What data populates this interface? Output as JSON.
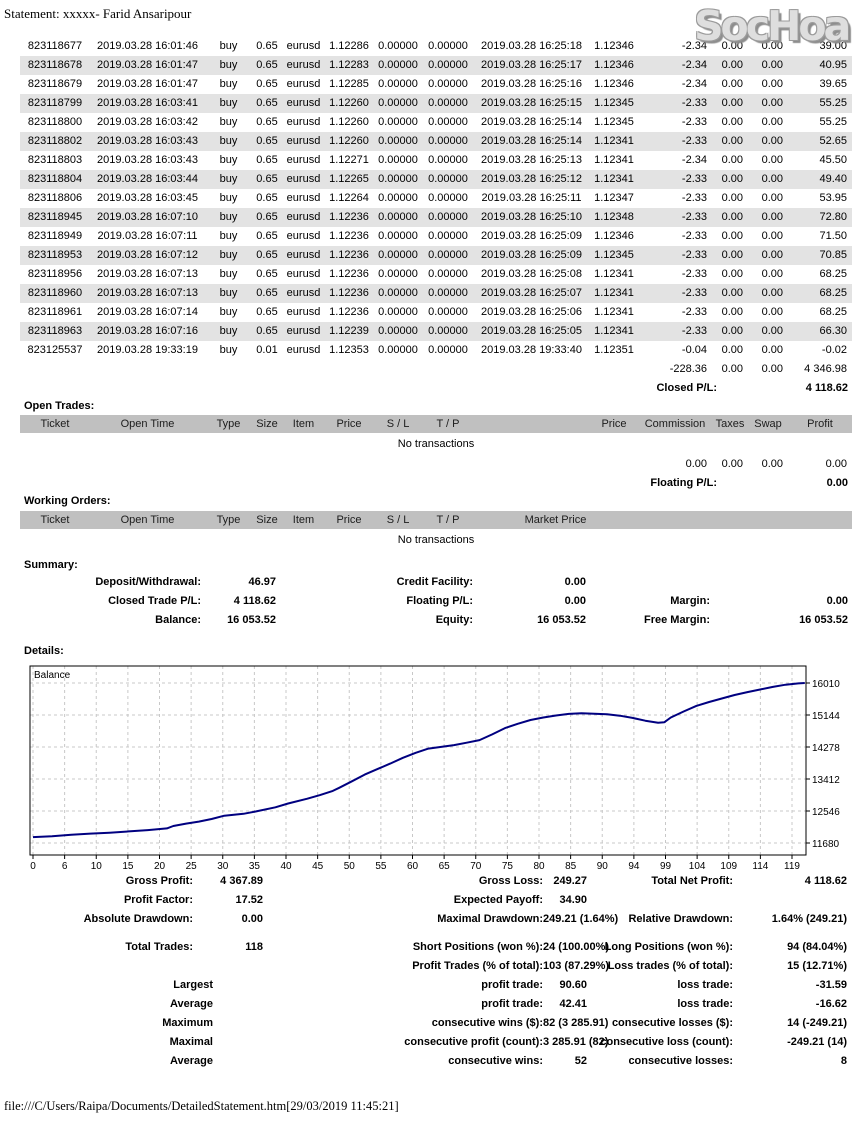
{
  "page": {
    "title": "Statement: xxxxx- Farid Ansaripour",
    "watermark": "SocHoa",
    "footer": "file:///C/Users/Raipa/Documents/DetailedStatement.htm[29/03/2019 11:45:21]"
  },
  "closed_trades": {
    "rows": [
      [
        "823118677",
        "2019.03.28 16:01:46",
        "buy",
        "0.65",
        "eurusd",
        "1.12286",
        "0.00000",
        "0.00000",
        "2019.03.28 16:25:18",
        "1.12346",
        "-2.34",
        "0.00",
        "0.00",
        "39.00"
      ],
      [
        "823118678",
        "2019.03.28 16:01:47",
        "buy",
        "0.65",
        "eurusd",
        "1.12283",
        "0.00000",
        "0.00000",
        "2019.03.28 16:25:17",
        "1.12346",
        "-2.34",
        "0.00",
        "0.00",
        "40.95"
      ],
      [
        "823118679",
        "2019.03.28 16:01:47",
        "buy",
        "0.65",
        "eurusd",
        "1.12285",
        "0.00000",
        "0.00000",
        "2019.03.28 16:25:16",
        "1.12346",
        "-2.34",
        "0.00",
        "0.00",
        "39.65"
      ],
      [
        "823118799",
        "2019.03.28 16:03:41",
        "buy",
        "0.65",
        "eurusd",
        "1.12260",
        "0.00000",
        "0.00000",
        "2019.03.28 16:25:15",
        "1.12345",
        "-2.33",
        "0.00",
        "0.00",
        "55.25"
      ],
      [
        "823118800",
        "2019.03.28 16:03:42",
        "buy",
        "0.65",
        "eurusd",
        "1.12260",
        "0.00000",
        "0.00000",
        "2019.03.28 16:25:14",
        "1.12345",
        "-2.33",
        "0.00",
        "0.00",
        "55.25"
      ],
      [
        "823118802",
        "2019.03.28 16:03:43",
        "buy",
        "0.65",
        "eurusd",
        "1.12260",
        "0.00000",
        "0.00000",
        "2019.03.28 16:25:14",
        "1.12341",
        "-2.33",
        "0.00",
        "0.00",
        "52.65"
      ],
      [
        "823118803",
        "2019.03.28 16:03:43",
        "buy",
        "0.65",
        "eurusd",
        "1.12271",
        "0.00000",
        "0.00000",
        "2019.03.28 16:25:13",
        "1.12341",
        "-2.34",
        "0.00",
        "0.00",
        "45.50"
      ],
      [
        "823118804",
        "2019.03.28 16:03:44",
        "buy",
        "0.65",
        "eurusd",
        "1.12265",
        "0.00000",
        "0.00000",
        "2019.03.28 16:25:12",
        "1.12341",
        "-2.33",
        "0.00",
        "0.00",
        "49.40"
      ],
      [
        "823118806",
        "2019.03.28 16:03:45",
        "buy",
        "0.65",
        "eurusd",
        "1.12264",
        "0.00000",
        "0.00000",
        "2019.03.28 16:25:11",
        "1.12347",
        "-2.33",
        "0.00",
        "0.00",
        "53.95"
      ],
      [
        "823118945",
        "2019.03.28 16:07:10",
        "buy",
        "0.65",
        "eurusd",
        "1.12236",
        "0.00000",
        "0.00000",
        "2019.03.28 16:25:10",
        "1.12348",
        "-2.33",
        "0.00",
        "0.00",
        "72.80"
      ],
      [
        "823118949",
        "2019.03.28 16:07:11",
        "buy",
        "0.65",
        "eurusd",
        "1.12236",
        "0.00000",
        "0.00000",
        "2019.03.28 16:25:09",
        "1.12346",
        "-2.33",
        "0.00",
        "0.00",
        "71.50"
      ],
      [
        "823118953",
        "2019.03.28 16:07:12",
        "buy",
        "0.65",
        "eurusd",
        "1.12236",
        "0.00000",
        "0.00000",
        "2019.03.28 16:25:09",
        "1.12345",
        "-2.33",
        "0.00",
        "0.00",
        "70.85"
      ],
      [
        "823118956",
        "2019.03.28 16:07:13",
        "buy",
        "0.65",
        "eurusd",
        "1.12236",
        "0.00000",
        "0.00000",
        "2019.03.28 16:25:08",
        "1.12341",
        "-2.33",
        "0.00",
        "0.00",
        "68.25"
      ],
      [
        "823118960",
        "2019.03.28 16:07:13",
        "buy",
        "0.65",
        "eurusd",
        "1.12236",
        "0.00000",
        "0.00000",
        "2019.03.28 16:25:07",
        "1.12341",
        "-2.33",
        "0.00",
        "0.00",
        "68.25"
      ],
      [
        "823118961",
        "2019.03.28 16:07:14",
        "buy",
        "0.65",
        "eurusd",
        "1.12236",
        "0.00000",
        "0.00000",
        "2019.03.28 16:25:06",
        "1.12341",
        "-2.33",
        "0.00",
        "0.00",
        "68.25"
      ],
      [
        "823118963",
        "2019.03.28 16:07:16",
        "buy",
        "0.65",
        "eurusd",
        "1.12239",
        "0.00000",
        "0.00000",
        "2019.03.28 16:25:05",
        "1.12341",
        "-2.33",
        "0.00",
        "0.00",
        "66.30"
      ],
      [
        "823125537",
        "2019.03.28 19:33:19",
        "buy",
        "0.01",
        "eurusd",
        "1.12353",
        "0.00000",
        "0.00000",
        "2019.03.28 19:33:40",
        "1.12351",
        "-0.04",
        "0.00",
        "0.00",
        "-0.02"
      ]
    ],
    "totals": [
      "-228.36",
      "0.00",
      "0.00",
      "4 346.98"
    ],
    "closed_pl_label": "Closed P/L:",
    "closed_pl_value": "4 118.62"
  },
  "open_trades": {
    "heading": "Open Trades:",
    "columns": [
      "Ticket",
      "Open Time",
      "Type",
      "Size",
      "Item",
      "Price",
      "S / L",
      "T / P",
      "",
      "Price",
      "Commission",
      "Taxes",
      "Swap",
      "Profit"
    ],
    "empty_text": "No transactions",
    "totals": [
      "0.00",
      "0.00",
      "0.00",
      "0.00"
    ],
    "floating_pl_label": "Floating P/L:",
    "floating_pl_value": "0.00"
  },
  "working_orders": {
    "heading": "Working Orders:",
    "columns": [
      "Ticket",
      "Open Time",
      "Type",
      "Size",
      "Item",
      "Price",
      "S / L",
      "T / P",
      "Market Price"
    ],
    "empty_text": "No transactions"
  },
  "summary": {
    "heading": "Summary:",
    "rows": [
      [
        "Deposit/Withdrawal:",
        "46.97",
        "Credit Facility:",
        "0.00",
        "",
        ""
      ],
      [
        "Closed Trade P/L:",
        "4 118.62",
        "Floating P/L:",
        "0.00",
        "Margin:",
        "0.00"
      ],
      [
        "Balance:",
        "16 053.52",
        "Equity:",
        "16 053.52",
        "Free Margin:",
        "16 053.52"
      ]
    ]
  },
  "details": {
    "heading": "Details:"
  },
  "chart_data": {
    "type": "line",
    "title": "Balance",
    "legend_label": "Balance",
    "xlabel": "",
    "ylabel": "",
    "x_ticks": [
      0,
      6,
      10,
      15,
      20,
      25,
      30,
      35,
      40,
      45,
      50,
      55,
      60,
      65,
      70,
      75,
      80,
      85,
      90,
      94,
      99,
      104,
      109,
      114,
      119
    ],
    "y_ticks": [
      16010,
      15144,
      14278,
      13412,
      12546,
      11680
    ],
    "y_axis_side": "right",
    "grid": "dashed",
    "line_color": "#000080",
    "series": [
      {
        "name": "Balance",
        "points": [
          [
            0,
            11840
          ],
          [
            3,
            11860
          ],
          [
            6,
            11905
          ],
          [
            9,
            11935
          ],
          [
            12,
            11960
          ],
          [
            15,
            11995
          ],
          [
            18,
            12030
          ],
          [
            21,
            12075
          ],
          [
            22,
            12140
          ],
          [
            24,
            12205
          ],
          [
            26,
            12260
          ],
          [
            28,
            12330
          ],
          [
            30,
            12420
          ],
          [
            33,
            12470
          ],
          [
            35,
            12535
          ],
          [
            38,
            12645
          ],
          [
            40,
            12750
          ],
          [
            43,
            12880
          ],
          [
            45,
            12975
          ],
          [
            47,
            13090
          ],
          [
            48,
            13175
          ],
          [
            50,
            13350
          ],
          [
            52,
            13530
          ],
          [
            54,
            13680
          ],
          [
            56,
            13830
          ],
          [
            58,
            13985
          ],
          [
            60,
            14120
          ],
          [
            62,
            14235
          ],
          [
            64,
            14280
          ],
          [
            66,
            14330
          ],
          [
            68,
            14395
          ],
          [
            70,
            14465
          ],
          [
            72,
            14620
          ],
          [
            74,
            14790
          ],
          [
            76,
            14905
          ],
          [
            78,
            15010
          ],
          [
            80,
            15075
          ],
          [
            82,
            15130
          ],
          [
            84,
            15175
          ],
          [
            86,
            15190
          ],
          [
            88,
            15180
          ],
          [
            90,
            15165
          ],
          [
            92,
            15125
          ],
          [
            94,
            15065
          ],
          [
            96,
            14990
          ],
          [
            98,
            14935
          ],
          [
            99,
            14950
          ],
          [
            100,
            15075
          ],
          [
            102,
            15240
          ],
          [
            104,
            15390
          ],
          [
            106,
            15495
          ],
          [
            108,
            15590
          ],
          [
            110,
            15685
          ],
          [
            112,
            15765
          ],
          [
            114,
            15835
          ],
          [
            116,
            15905
          ],
          [
            118,
            15965
          ],
          [
            120,
            16000
          ],
          [
            121,
            16010
          ]
        ]
      }
    ]
  },
  "stats": {
    "group_a": [
      [
        "Gross Profit:",
        "4 367.89",
        "Gross Loss:",
        "249.27",
        "Total Net Profit:",
        "4 118.62"
      ],
      [
        "Profit Factor:",
        "17.52",
        "Expected Payoff:",
        "34.90",
        "",
        ""
      ],
      [
        "Absolute Drawdown:",
        "0.00",
        "Maximal Drawdown:",
        "249.21 (1.64%)",
        "Relative Drawdown:",
        "1.64% (249.21)"
      ]
    ],
    "group_b": [
      [
        "Total Trades:",
        "118",
        "Short Positions (won %):",
        "24 (100.00%)",
        "Long Positions (won %):",
        "94 (84.04%)"
      ],
      [
        "",
        "",
        "Profit Trades (% of total):",
        "103 (87.29%)",
        "Loss trades (% of total):",
        "15 (12.71%)"
      ],
      [
        "Largest",
        "",
        "profit trade:",
        "90.60",
        "loss trade:",
        "-31.59"
      ],
      [
        "Average",
        "",
        "profit trade:",
        "42.41",
        "loss trade:",
        "-16.62"
      ],
      [
        "Maximum",
        "",
        "consecutive wins ($):",
        "82 (3 285.91)",
        "consecutive losses ($):",
        "14 (-249.21)"
      ],
      [
        "Maximal",
        "",
        "consecutive profit (count):",
        "3 285.91 (82)",
        "consecutive loss (count):",
        "-249.21 (14)"
      ],
      [
        "Average",
        "",
        "consecutive wins:",
        "52",
        "consecutive losses:",
        "8"
      ]
    ]
  },
  "colors": {
    "header_bar": "#c0c0c0",
    "row_stripe": "#e3e3e3",
    "chart_line": "#000080",
    "grid_line": "#c8c8c8"
  }
}
